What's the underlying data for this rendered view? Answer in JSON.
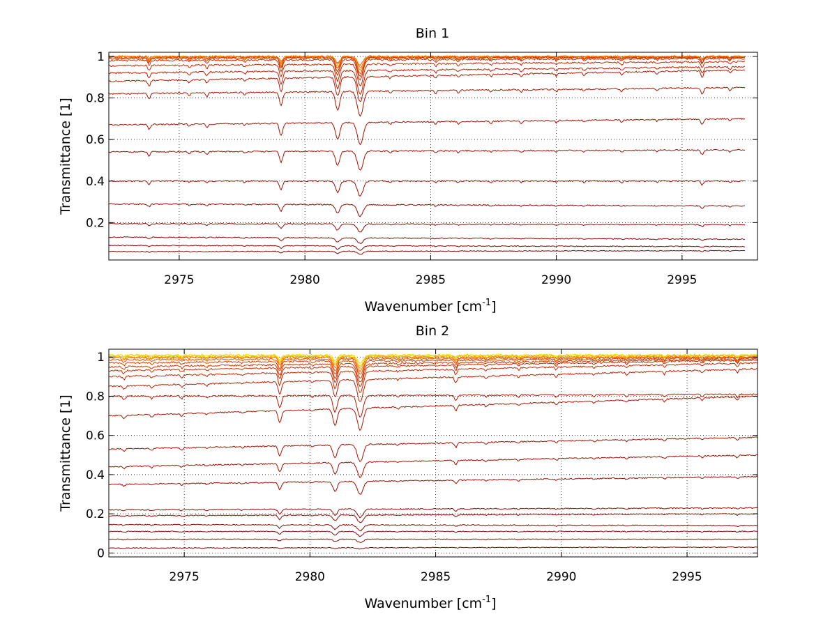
{
  "chart_data": [
    {
      "type": "line",
      "title": "Bin 1",
      "xlabel_text": "Wavenumber [cm",
      "xlabel_sup": "-1",
      "xlabel_close": "]",
      "ylabel": "Transmittance [1]",
      "xlim": [
        2972.2,
        2998.0
      ],
      "ylim": [
        0.02,
        1.02
      ],
      "xticks": [
        2975,
        2980,
        2985,
        2990,
        2995
      ],
      "yticks": [
        0.2,
        0.4,
        0.6,
        0.8,
        1
      ],
      "ytick_labels": [
        "0.2",
        "0.4",
        "0.6",
        "0.8",
        "1"
      ],
      "grid": true,
      "x_range": [
        2972.2,
        2997.5
      ],
      "absorption_lines": [
        {
          "x": 2973.8,
          "depth": 0.18,
          "width": 0.07
        },
        {
          "x": 2975.4,
          "depth": 0.08,
          "width": 0.06
        },
        {
          "x": 2976.1,
          "depth": 0.12,
          "width": 0.06
        },
        {
          "x": 2977.6,
          "depth": 0.07,
          "width": 0.06
        },
        {
          "x": 2979.05,
          "depth": 0.45,
          "width": 0.09
        },
        {
          "x": 2981.3,
          "depth": 0.6,
          "width": 0.12
        },
        {
          "x": 2982.2,
          "depth": 0.8,
          "width": 0.16
        },
        {
          "x": 2983.4,
          "depth": 0.07,
          "width": 0.06
        },
        {
          "x": 2985.2,
          "depth": 0.1,
          "width": 0.06
        },
        {
          "x": 2986.1,
          "depth": 0.08,
          "width": 0.06
        },
        {
          "x": 2987.4,
          "depth": 0.07,
          "width": 0.06
        },
        {
          "x": 2988.6,
          "depth": 0.08,
          "width": 0.06
        },
        {
          "x": 2990.0,
          "depth": 0.08,
          "width": 0.06
        },
        {
          "x": 2991.1,
          "depth": 0.07,
          "width": 0.06
        },
        {
          "x": 2992.6,
          "depth": 0.08,
          "width": 0.06
        },
        {
          "x": 2994.0,
          "depth": 0.07,
          "width": 0.06
        },
        {
          "x": 2995.8,
          "depth": 0.2,
          "width": 0.07
        },
        {
          "x": 2996.9,
          "depth": 0.08,
          "width": 0.06
        }
      ],
      "series": [
        {
          "color": "#e85a00",
          "baseline": [
            0.999,
            0.999
          ]
        },
        {
          "color": "#ff7400",
          "baseline": [
            0.998,
            0.998
          ]
        },
        {
          "color": "#ff9000",
          "baseline": [
            0.999,
            0.999
          ]
        },
        {
          "color": "#e34a00",
          "baseline": [
            0.995,
            0.997
          ]
        },
        {
          "color": "#d43a00",
          "baseline": [
            0.99,
            0.995
          ]
        },
        {
          "color": "#c82e00",
          "baseline": [
            0.98,
            0.99
          ]
        },
        {
          "color": "#c02800",
          "baseline": [
            0.955,
            0.975
          ]
        },
        {
          "color": "#b82000",
          "baseline": [
            0.92,
            0.95
          ]
        },
        {
          "color": "#b01a00",
          "baseline": [
            0.88,
            0.935
          ]
        },
        {
          "color": "#a81500",
          "baseline": [
            0.82,
            0.85
          ]
        },
        {
          "color": "#a01200",
          "baseline": [
            0.67,
            0.7
          ]
        },
        {
          "color": "#9c1000",
          "baseline": [
            0.54,
            0.55
          ]
        },
        {
          "color": "#960d00",
          "baseline": [
            0.4,
            0.4
          ]
        },
        {
          "color": "#900b00",
          "baseline": [
            0.29,
            0.28
          ]
        },
        {
          "color": "#8c0900",
          "baseline": [
            0.195,
            0.19
          ]
        },
        {
          "color": "#880800",
          "baseline": [
            0.13,
            0.12
          ]
        },
        {
          "color": "#840700",
          "baseline": [
            0.09,
            0.085
          ]
        },
        {
          "color": "#800600",
          "baseline": [
            0.06,
            0.065
          ]
        }
      ]
    },
    {
      "type": "line",
      "title": "Bin 2",
      "xlabel_text": "Wavenumber [cm",
      "xlabel_sup": "-1",
      "xlabel_close": "]",
      "ylabel": "Transmittance [1]",
      "xlim": [
        2972.0,
        2997.8
      ],
      "ylim": [
        -0.02,
        1.04
      ],
      "xticks": [
        2975,
        2980,
        2985,
        2990,
        2995
      ],
      "yticks": [
        0,
        0.2,
        0.4,
        0.6,
        0.8,
        1
      ],
      "ytick_labels": [
        "0",
        "0.2",
        "0.4",
        "0.6",
        "0.8",
        "1"
      ],
      "grid": true,
      "x_range": [
        2972.0,
        2997.8
      ],
      "absorption_lines": [
        {
          "x": 2972.6,
          "depth": 0.12,
          "width": 0.08
        },
        {
          "x": 2973.7,
          "depth": 0.1,
          "width": 0.07
        },
        {
          "x": 2974.9,
          "depth": 0.1,
          "width": 0.07
        },
        {
          "x": 2975.9,
          "depth": 0.07,
          "width": 0.06
        },
        {
          "x": 2977.3,
          "depth": 0.06,
          "width": 0.06
        },
        {
          "x": 2978.8,
          "depth": 0.45,
          "width": 0.09
        },
        {
          "x": 2980.1,
          "depth": 0.06,
          "width": 0.06
        },
        {
          "x": 2981.0,
          "depth": 0.6,
          "width": 0.12
        },
        {
          "x": 2982.0,
          "depth": 0.8,
          "width": 0.16
        },
        {
          "x": 2983.5,
          "depth": 0.06,
          "width": 0.06
        },
        {
          "x": 2985.8,
          "depth": 0.2,
          "width": 0.07
        },
        {
          "x": 2987.0,
          "depth": 0.08,
          "width": 0.06
        },
        {
          "x": 2988.3,
          "depth": 0.08,
          "width": 0.06
        },
        {
          "x": 2989.8,
          "depth": 0.1,
          "width": 0.06
        },
        {
          "x": 2991.3,
          "depth": 0.07,
          "width": 0.06
        },
        {
          "x": 2992.6,
          "depth": 0.08,
          "width": 0.06
        },
        {
          "x": 2994.1,
          "depth": 0.1,
          "width": 0.06
        },
        {
          "x": 2995.6,
          "depth": 0.08,
          "width": 0.06
        },
        {
          "x": 2997.0,
          "depth": 0.12,
          "width": 0.06
        }
      ],
      "series": [
        {
          "color": "#ffd600",
          "baseline": [
            1.01,
            1.01
          ]
        },
        {
          "color": "#c8e000",
          "baseline": [
            1.005,
            1.008
          ]
        },
        {
          "color": "#ffa000",
          "baseline": [
            1.0,
            1.005
          ]
        },
        {
          "color": "#ff7800",
          "baseline": [
            0.995,
            1.0
          ]
        },
        {
          "color": "#e85a00",
          "baseline": [
            0.985,
            0.998
          ]
        },
        {
          "color": "#d84400",
          "baseline": [
            0.97,
            0.995
          ]
        },
        {
          "color": "#d03800",
          "baseline": [
            0.95,
            0.99
          ]
        },
        {
          "color": "#c82e00",
          "baseline": [
            0.93,
            0.985
          ]
        },
        {
          "color": "#c02800",
          "baseline": [
            0.9,
            0.97
          ]
        },
        {
          "color": "#b82000",
          "baseline": [
            0.85,
            0.94
          ]
        },
        {
          "color": "#b01a00",
          "baseline": [
            0.8,
            0.81
          ]
        },
        {
          "color": "#a81500",
          "baseline": [
            0.7,
            0.8
          ]
        },
        {
          "color": "#a01200",
          "baseline": [
            0.53,
            0.59
          ]
        },
        {
          "color": "#9c1000",
          "baseline": [
            0.44,
            0.5
          ]
        },
        {
          "color": "#960d00",
          "baseline": [
            0.35,
            0.39
          ]
        },
        {
          "color": "#900b00",
          "baseline": [
            0.22,
            0.23
          ]
        },
        {
          "color": "#8c0900",
          "baseline": [
            0.19,
            0.2
          ]
        },
        {
          "color": "#880800",
          "baseline": [
            0.145,
            0.14
          ]
        },
        {
          "color": "#840700",
          "baseline": [
            0.11,
            0.11
          ]
        },
        {
          "color": "#800600",
          "baseline": [
            0.07,
            0.07
          ]
        },
        {
          "color": "#7c0500",
          "baseline": [
            0.025,
            0.03
          ]
        }
      ]
    }
  ]
}
